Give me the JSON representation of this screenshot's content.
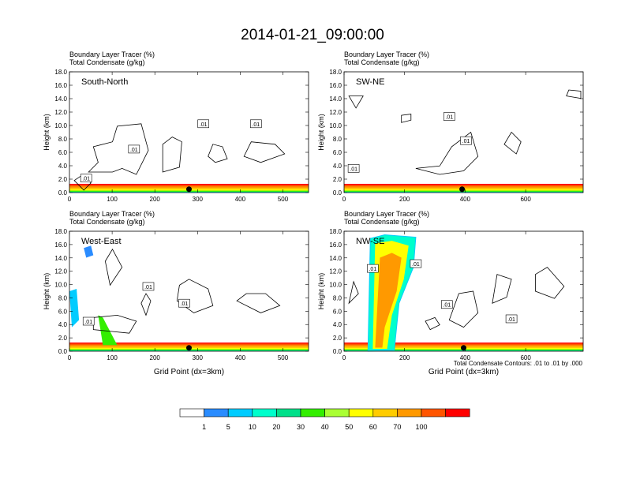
{
  "title": "2014-01-21_09:00:00",
  "colors": {
    "contour": "#000000",
    "palette": [
      "#ffffff",
      "#2a8cff",
      "#00ccff",
      "#00ffcc",
      "#00e08a",
      "#33ee00",
      "#aaff33",
      "#ffff00",
      "#ffcc00",
      "#ff9900",
      "#ff5500",
      "#ff0000"
    ]
  },
  "colorbar": {
    "labels": [
      "1",
      "5",
      "10",
      "20",
      "30",
      "40",
      "50",
      "60",
      "70",
      "100"
    ]
  },
  "footnote": "Total Condensate Contours: .01 to .01 by .000",
  "chart_data": [
    {
      "type": "heatmap",
      "panel": "top-left",
      "name": "South-North",
      "subtitle1": "Boundary Layer Tracer    (%)",
      "subtitle2": "Total Condensate    (g/kg)",
      "ylabel": "Height (km)",
      "xlabel": "",
      "xlim": [
        0,
        560
      ],
      "ylim": [
        0,
        18
      ],
      "xticks": [
        "0",
        "100",
        "200",
        "300",
        "400",
        "500"
      ],
      "yticks": [
        "0.0",
        "2.0",
        "4.0",
        "6.0",
        "8.0",
        "10.0",
        "12.0",
        "14.0",
        "16.0",
        "18.0"
      ],
      "contour_labels": [
        ".01",
        ".01",
        ".01",
        ".01"
      ],
      "marker_x": 280,
      "tracer_top_km": 1.3
    },
    {
      "type": "heatmap",
      "panel": "top-right",
      "name": "SW-NE",
      "subtitle1": "Boundary Layer Tracer    (%)",
      "subtitle2": "Total Condensate    (g/kg)",
      "ylabel": "Height (km)",
      "xlabel": "",
      "xlim": [
        0,
        790
      ],
      "ylim": [
        0,
        18
      ],
      "xticks": [
        "0",
        "200",
        "400",
        "600"
      ],
      "yticks": [
        "0.0",
        "2.0",
        "4.0",
        "6.0",
        "8.0",
        "10.0",
        "12.0",
        "14.0",
        "16.0",
        "18.0"
      ],
      "contour_labels": [
        ".01",
        ".01",
        ".01"
      ],
      "marker_x": 390,
      "tracer_top_km": 1.3
    },
    {
      "type": "heatmap",
      "panel": "bottom-left",
      "name": "West-East",
      "subtitle1": "Boundary Layer Tracer    (%)",
      "subtitle2": "Total Condensate    (g/kg)",
      "ylabel": "Height (km)",
      "xlabel": "Grid Point (dx=3km)",
      "xlim": [
        0,
        560
      ],
      "ylim": [
        0,
        18
      ],
      "xticks": [
        "0",
        "100",
        "200",
        "300",
        "400",
        "500"
      ],
      "yticks": [
        "0.0",
        "2.0",
        "4.0",
        "6.0",
        "8.0",
        "10.0",
        "12.0",
        "14.0",
        "16.0",
        "18.0"
      ],
      "contour_labels": [
        ".01",
        ".01",
        ".01"
      ],
      "marker_x": 280,
      "tracer_top_km": 1.3
    },
    {
      "type": "heatmap",
      "panel": "bottom-right",
      "name": "NW-SE",
      "subtitle1": "Boundary Layer Tracer    (%)",
      "subtitle2": "Total Condensate    (g/kg)",
      "ylabel": "Height (km)",
      "xlabel": "Grid Point (dx=3km)",
      "xlim": [
        0,
        790
      ],
      "ylim": [
        0,
        18
      ],
      "xticks": [
        "0",
        "200",
        "400",
        "600"
      ],
      "yticks": [
        "0.0",
        "2.0",
        "4.0",
        "6.0",
        "8.0",
        "10.0",
        "12.0",
        "14.0",
        "16.0",
        "18.0"
      ],
      "contour_labels": [
        ".01",
        ".01",
        ".01",
        ".01"
      ],
      "marker_x": 395,
      "tracer_top_km": 1.3
    }
  ]
}
